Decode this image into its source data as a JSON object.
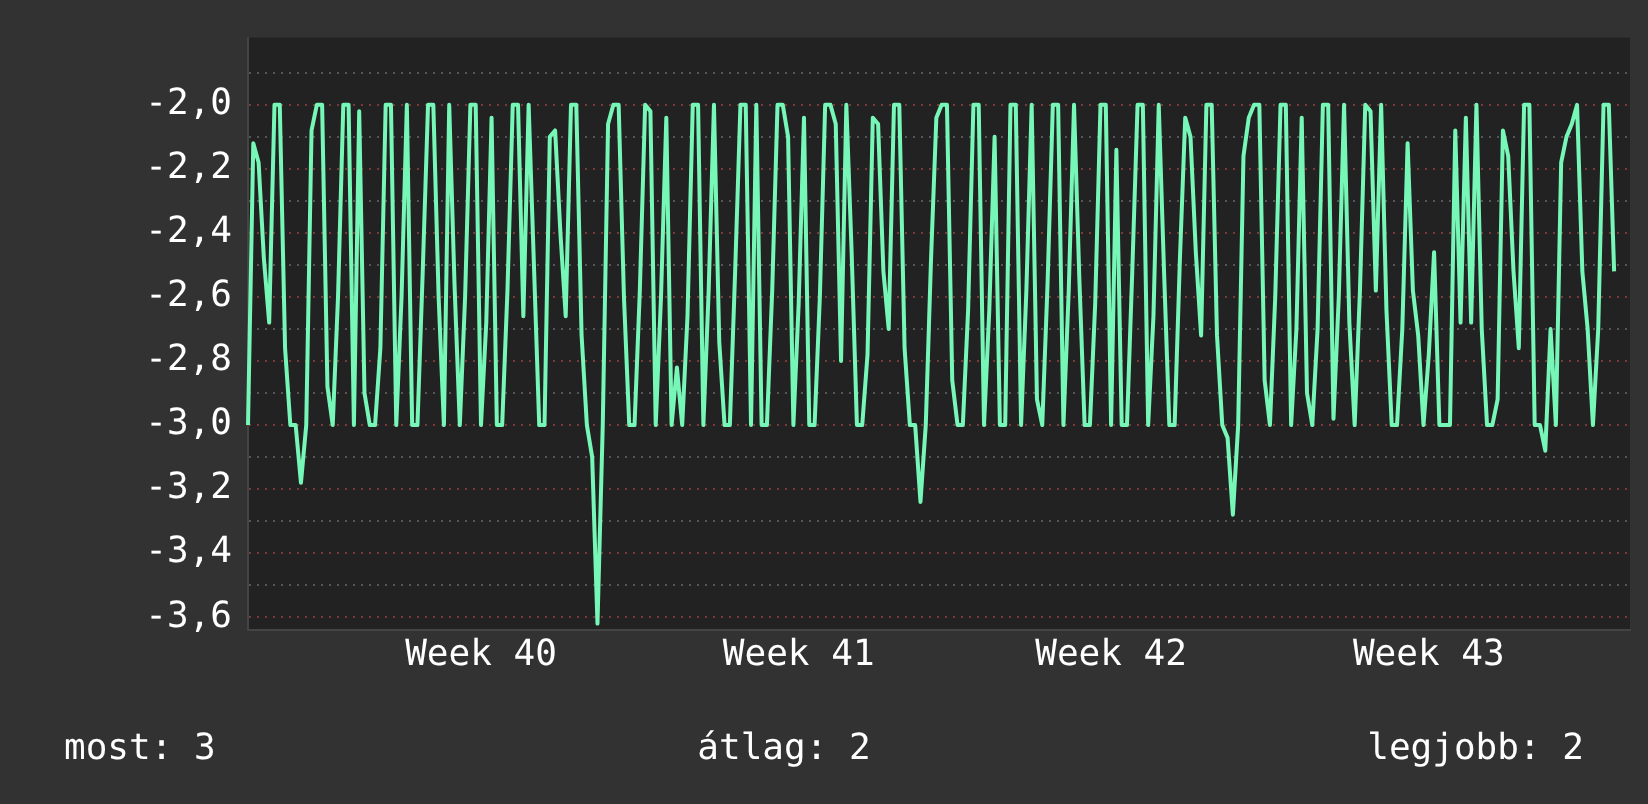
{
  "chart_data": {
    "type": "line",
    "color": "#77f7b7",
    "marker": "none",
    "grid": "y",
    "categories": [
      null,
      null,
      null,
      null,
      null,
      null,
      null,
      null,
      null,
      null,
      null,
      null,
      null,
      null,
      null,
      null,
      null,
      null,
      null,
      null,
      null,
      null,
      null,
      null,
      null,
      null,
      null,
      null,
      null,
      null,
      null,
      null,
      null,
      null,
      null,
      null,
      null,
      null,
      null,
      null,
      null,
      null,
      null,
      null,
      "Week 40",
      null,
      null,
      null,
      null,
      null,
      null,
      null,
      null,
      null,
      null,
      null,
      null,
      null,
      null,
      null,
      null,
      null,
      null,
      null,
      null,
      null,
      null,
      null,
      null,
      null,
      null,
      null,
      null,
      null,
      null,
      null,
      null,
      null,
      null,
      null,
      null,
      null,
      null,
      null,
      null,
      null,
      null,
      null,
      null,
      null,
      null,
      null,
      null,
      null,
      null,
      null,
      null,
      null,
      null,
      null,
      null,
      null,
      null,
      null,
      "Week 41",
      null,
      null,
      null,
      null,
      null,
      null,
      null,
      null,
      null,
      null,
      null,
      null,
      null,
      null,
      null,
      null,
      null,
      null,
      null,
      null,
      null,
      null,
      null,
      null,
      null,
      null,
      null,
      null,
      null,
      null,
      null,
      null,
      null,
      null,
      null,
      null,
      null,
      null,
      null,
      null,
      null,
      null,
      null,
      null,
      null,
      null,
      null,
      null,
      null,
      null,
      null,
      null,
      null,
      null,
      null,
      null,
      null,
      null,
      "Week 42",
      null,
      null,
      null,
      null,
      null,
      null,
      null,
      null,
      null,
      null,
      null,
      null,
      null,
      null,
      null,
      null,
      null,
      null,
      null,
      null,
      null,
      null,
      null,
      null,
      null,
      null,
      null,
      null,
      null,
      null,
      null,
      null,
      null,
      null,
      null,
      null,
      null,
      null,
      null,
      null,
      null,
      null,
      null,
      null,
      null,
      null,
      null,
      null,
      null,
      null,
      null,
      null,
      null,
      null,
      null,
      null,
      null,
      null,
      null,
      "Week 43",
      null,
      null,
      null,
      null,
      null,
      null,
      null,
      null,
      null,
      null,
      null,
      null,
      null,
      null,
      null,
      null,
      null,
      null,
      null,
      null,
      null,
      null,
      null,
      null,
      null,
      null,
      null,
      null,
      null,
      null,
      null,
      null,
      null,
      null,
      null,
      null,
      null,
      null
    ],
    "values": [
      -3,
      -2.12,
      -2.18,
      -2.48,
      -2.68,
      -2,
      -2,
      -2.76,
      -3,
      -3,
      -3.18,
      -3,
      -2.08,
      -2,
      -2,
      -2.88,
      -3,
      -2.6,
      -2,
      -2,
      -3,
      -2.02,
      -2.9,
      -3,
      -3,
      -2.76,
      -2,
      -2,
      -3,
      -2.6,
      -2,
      -3,
      -3,
      -2.52,
      -2,
      -2,
      -2.6,
      -3,
      -2,
      -2.56,
      -3,
      -2.6,
      -2,
      -2,
      -3,
      -2.68,
      -2.04,
      -3,
      -3,
      -2.58,
      -2,
      -2,
      -2.66,
      -2,
      -2.5,
      -3,
      -3,
      -2.1,
      -2.08,
      -2.4,
      -2.66,
      -2,
      -2,
      -2.72,
      -3,
      -3.1,
      -3.62,
      -3,
      -2.06,
      -2,
      -2,
      -2.6,
      -3,
      -3,
      -2.58,
      -2,
      -2.02,
      -3,
      -2.6,
      -2.04,
      -3,
      -2.82,
      -3,
      -2.66,
      -2,
      -2,
      -3,
      -2.58,
      -2,
      -2.74,
      -3,
      -3,
      -2.52,
      -2,
      -2,
      -3,
      -2,
      -3,
      -3,
      -2.58,
      -2,
      -2,
      -2.1,
      -3,
      -2.62,
      -2.04,
      -3,
      -3,
      -2.6,
      -2,
      -2,
      -2.06,
      -2.8,
      -2,
      -2.46,
      -3,
      -3,
      -2.78,
      -2.04,
      -2.06,
      -2.52,
      -2.7,
      -2,
      -2,
      -2.76,
      -3,
      -3,
      -3.24,
      -3,
      -2.48,
      -2.04,
      -2,
      -2,
      -2.86,
      -3,
      -3,
      -2.64,
      -2,
      -2,
      -3,
      -2.64,
      -2.1,
      -3,
      -3,
      -2,
      -2,
      -3,
      -2.58,
      -2,
      -2.92,
      -3,
      -2.56,
      -2,
      -2,
      -3,
      -2.58,
      -2,
      -2.54,
      -3,
      -3,
      -2.62,
      -2,
      -2,
      -3,
      -2.14,
      -3,
      -3,
      -2.52,
      -2,
      -2,
      -3,
      -2.66,
      -2,
      -2.52,
      -3,
      -3,
      -2.48,
      -2.04,
      -2.1,
      -2.46,
      -2.72,
      -2,
      -2,
      -2.72,
      -3,
      -3.04,
      -3.28,
      -3,
      -2.16,
      -2.04,
      -2,
      -2,
      -2.86,
      -3,
      -2.6,
      -2,
      -2,
      -3,
      -2.7,
      -2.04,
      -2.9,
      -3,
      -2.7,
      -2,
      -2,
      -2.98,
      -2.6,
      -2,
      -2.68,
      -3,
      -2.58,
      -2,
      -2.02,
      -2.58,
      -2,
      -2.64,
      -3,
      -3,
      -2.7,
      -2.12,
      -2.58,
      -2.72,
      -3,
      -2.78,
      -2.46,
      -3,
      -3,
      -3,
      -2.08,
      -2.68,
      -2.04,
      -2.68,
      -2,
      -2.7,
      -3,
      -3,
      -2.92,
      -2.08,
      -2.16,
      -2.52,
      -2.76,
      -2,
      -2,
      -3,
      -3,
      -3.08,
      -2.7,
      -3,
      -2.18,
      -2.1,
      -2.06,
      -2,
      -2.52,
      -2.7,
      -3,
      -2.7,
      -2,
      -2,
      -2.52,
      null,
      null,
      null
    ],
    "ylim": [
      -3.64,
      -1.79
    ],
    "yticks": [
      {
        "value": -1.9,
        "label": null
      },
      {
        "value": -2.0,
        "label": "-2,0"
      },
      {
        "value": -2.1,
        "label": null
      },
      {
        "value": -2.2,
        "label": "-2,2"
      },
      {
        "value": -2.3,
        "label": null
      },
      {
        "value": -2.4,
        "label": "-2,4"
      },
      {
        "value": -2.5,
        "label": null
      },
      {
        "value": -2.6,
        "label": "-2,6"
      },
      {
        "value": -2.7,
        "label": null
      },
      {
        "value": -2.8,
        "label": "-2,8"
      },
      {
        "value": -2.9,
        "label": null
      },
      {
        "value": -3.0,
        "label": "-3,0"
      },
      {
        "value": -3.1,
        "label": null
      },
      {
        "value": -3.2,
        "label": "-3,2"
      },
      {
        "value": -3.3,
        "label": null
      },
      {
        "value": -3.4,
        "label": "-3,4"
      },
      {
        "value": -3.5,
        "label": null
      },
      {
        "value": -3.6,
        "label": "-3,6"
      }
    ],
    "annotations": [
      "most: 3",
      "átlag: 2",
      "legjobb: 2"
    ]
  }
}
